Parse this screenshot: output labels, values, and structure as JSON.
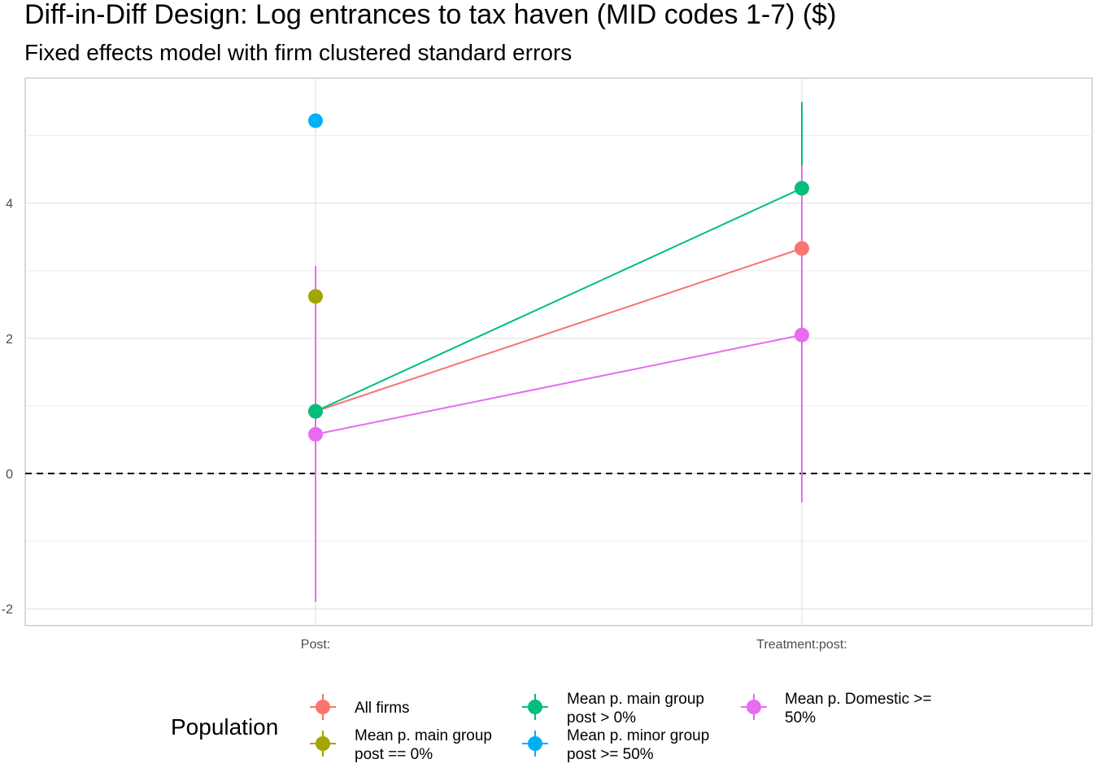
{
  "chart_data": {
    "type": "scatter",
    "title": "Diff-in-Diff Design: Log entrances to tax haven (MID codes 1-7)  ($)",
    "subtitle": "Fixed effects model with firm clustered standard errors",
    "xlabel": "",
    "ylabel": "",
    "categories": [
      "Post:",
      "Treatment:post:"
    ],
    "ylim": [
      -2.25,
      5.85
    ],
    "yticks": [
      -2,
      0,
      2,
      4
    ],
    "reference_line": {
      "y": 0,
      "style": "dashed"
    },
    "grid": true,
    "legend": {
      "title": "Population",
      "position": "bottom"
    },
    "series": [
      {
        "name": "All firms",
        "color": "#F8766D",
        "points": [
          {
            "x": "Post:",
            "y": 0.92,
            "low": null,
            "high": null
          },
          {
            "x": "Treatment:post:",
            "y": 3.33,
            "low": null,
            "high": null
          }
        ]
      },
      {
        "name": "Mean p. main group post == 0%",
        "color": "#A3A500",
        "points": [
          {
            "x": "Post:",
            "y": 2.62,
            "low": null,
            "high": null
          }
        ]
      },
      {
        "name": "Mean p. main group post > 0%",
        "color": "#00BF7D",
        "points": [
          {
            "x": "Post:",
            "y": 0.92,
            "low": null,
            "high": null
          },
          {
            "x": "Treatment:post:",
            "y": 4.22,
            "low": 2.95,
            "high": 5.5
          }
        ]
      },
      {
        "name": "Mean p. minor group post >= 50%",
        "color": "#00B0F6",
        "points": [
          {
            "x": "Post:",
            "y": 5.22,
            "low": null,
            "high": null
          }
        ]
      },
      {
        "name": "Mean p. Domestic >= 50%",
        "color": "#E76BF3",
        "points": [
          {
            "x": "Post:",
            "y": 0.58,
            "low": -1.9,
            "high": 3.07
          },
          {
            "x": "Treatment:post:",
            "y": 2.05,
            "low": -0.43,
            "high": 4.55
          }
        ]
      }
    ],
    "legend_labels": [
      [
        "All firms"
      ],
      [
        "Mean p. main group",
        "post == 0%"
      ],
      [
        "Mean p. main group",
        "post > 0%"
      ],
      [
        "Mean p. minor group",
        "post >= 50%"
      ],
      [
        "Mean p. Domestic >=",
        "50%"
      ]
    ]
  }
}
